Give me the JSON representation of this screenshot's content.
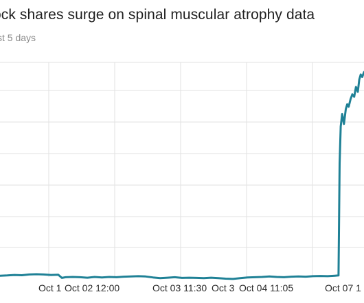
{
  "header": {
    "title": "ock shares surge on spinal muscular atrophy data",
    "subtitle": "st 5 days"
  },
  "colors": {
    "line": "#1f8196",
    "grid": "#e2e2e2",
    "title": "#1f1f1f",
    "subtitle": "#8a8a8a"
  },
  "chart_data": {
    "type": "line",
    "title": "ock shares surge on spinal muscular atrophy data",
    "subtitle": "st 5 days",
    "xlabel": "",
    "ylabel": "",
    "grid": true,
    "x_tick_labels": [
      "Oct 1",
      "Oct 02 12:00",
      "Oct 03 11:30",
      "Oct 3",
      "Oct 04 11:05",
      "Oct 07 1"
    ],
    "x_range": [
      0,
      100
    ],
    "y_range": [
      0,
      100
    ],
    "series": [
      {
        "values_x": [
          0,
          2,
          4,
          6,
          8,
          10,
          12,
          14,
          16,
          17,
          18,
          20,
          22,
          24,
          26,
          28,
          30,
          32,
          34,
          36,
          38,
          40,
          42,
          44,
          46,
          48,
          50,
          52,
          54,
          56,
          58,
          60,
          62,
          64,
          66,
          68,
          70,
          72,
          74,
          76,
          78,
          80,
          82,
          84,
          86,
          88,
          90,
          92,
          93,
          93.3,
          93.6,
          94,
          94.5,
          95,
          95.4,
          95.8,
          96.3,
          96.8,
          97.3,
          97.8,
          98.3,
          98.7,
          99.1,
          99.5,
          100
        ],
        "values_y": [
          10.5,
          10.6,
          10.8,
          10.7,
          11.0,
          11.1,
          11.0,
          10.8,
          10.9,
          9.6,
          9.9,
          10.0,
          9.9,
          9.7,
          10.0,
          9.8,
          10.0,
          9.9,
          10.1,
          10.2,
          10.3,
          10.2,
          9.8,
          9.5,
          9.7,
          9.9,
          9.6,
          9.7,
          9.6,
          9.5,
          9.7,
          9.5,
          9.3,
          9.2,
          9.5,
          9.8,
          9.9,
          10.0,
          10.2,
          10.0,
          9.9,
          10.1,
          10.2,
          10.1,
          10.3,
          10.4,
          10.3,
          10.5,
          10.6,
          56,
          71,
          76,
          72,
          78,
          80,
          79,
          82,
          84,
          83,
          87,
          85,
          90,
          92,
          91,
          93
        ]
      }
    ]
  }
}
